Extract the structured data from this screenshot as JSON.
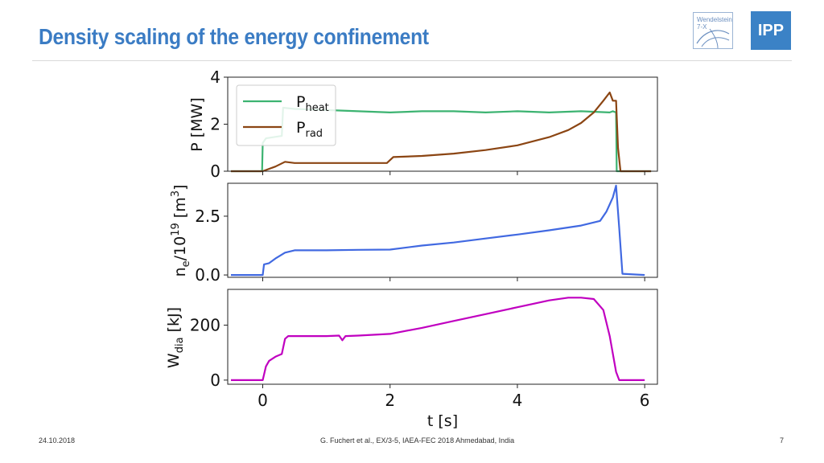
{
  "slide": {
    "title": "Density scaling of the energy confinement",
    "date": "24.10.2018",
    "citation": "G. Fuchert et al., EX/3-5, IAEA-FEC 2018 Ahmedabad, India",
    "page_number": "7"
  },
  "logos": {
    "w7x_text_line1": "Wendelstein",
    "w7x_text_line2": "7-X",
    "ipp_text": "IPP"
  },
  "colors": {
    "title": "#3b7cc4",
    "p_heat": "#3cb371",
    "p_rad": "#8b4513",
    "n_e": "#4169e1",
    "w_dia": "#c000c0"
  },
  "chart_data": [
    {
      "type": "line",
      "ylabel_main": "P [MW]",
      "xlim": [
        -0.55,
        6.2
      ],
      "ylim": [
        0,
        4
      ],
      "yticks": [
        0,
        2,
        4
      ],
      "legend_placement": "top-left",
      "series": [
        {
          "name": "P",
          "name_sub": "heat",
          "x": [
            -0.5,
            -0.01,
            0.0,
            0.05,
            0.3,
            0.32,
            0.5,
            1.0,
            1.5,
            2.0,
            2.5,
            3.0,
            3.5,
            4.0,
            4.5,
            5.0,
            5.45,
            5.5,
            5.55,
            5.56,
            6.1
          ],
          "y": [
            0,
            0,
            1.2,
            1.4,
            1.5,
            2.7,
            2.65,
            2.6,
            2.55,
            2.5,
            2.55,
            2.55,
            2.5,
            2.55,
            2.5,
            2.55,
            2.5,
            2.55,
            2.5,
            0,
            0
          ]
        },
        {
          "name": "P",
          "name_sub": "rad",
          "x": [
            -0.5,
            0.0,
            0.05,
            0.2,
            0.35,
            0.5,
            1.0,
            1.5,
            1.95,
            2.05,
            2.5,
            3.0,
            3.5,
            4.0,
            4.5,
            4.8,
            5.0,
            5.2,
            5.35,
            5.45,
            5.5,
            5.55,
            5.58,
            5.62,
            6.1
          ],
          "y": [
            0,
            0,
            0.05,
            0.2,
            0.4,
            0.35,
            0.35,
            0.35,
            0.35,
            0.6,
            0.65,
            0.75,
            0.9,
            1.1,
            1.45,
            1.75,
            2.05,
            2.5,
            3.0,
            3.35,
            3.0,
            3.0,
            1.0,
            0,
            0
          ]
        }
      ]
    },
    {
      "type": "line",
      "ylabel_main": "n",
      "ylabel_sub": "e",
      "ylabel_rest": "/10",
      "ylabel_sup": "19",
      "ylabel_unit": " [m",
      "ylabel_unit_sup": "3",
      "ylabel_end": "]",
      "xlim": [
        -0.55,
        6.2
      ],
      "ylim": [
        -0.1,
        3.9
      ],
      "yticks": [
        0.0,
        2.5
      ],
      "ytick_labels": [
        "0.0",
        "2.5"
      ],
      "series": [
        {
          "name": "",
          "x": [
            -0.5,
            0.0,
            0.02,
            0.1,
            0.2,
            0.35,
            0.5,
            0.8,
            1.0,
            1.5,
            2.0,
            2.5,
            3.0,
            3.5,
            4.0,
            4.5,
            5.0,
            5.3,
            5.4,
            5.5,
            5.55,
            5.6,
            5.65,
            6.0
          ],
          "y": [
            0,
            0,
            0.45,
            0.5,
            0.7,
            0.95,
            1.05,
            1.05,
            1.05,
            1.07,
            1.08,
            1.25,
            1.38,
            1.55,
            1.72,
            1.9,
            2.1,
            2.3,
            2.7,
            3.3,
            3.8,
            2.0,
            0.05,
            0
          ]
        }
      ]
    },
    {
      "type": "line",
      "ylabel_main": "W",
      "ylabel_sub": "dia",
      "ylabel_rest": " [kJ]",
      "xlabel": "t [s]",
      "xlim": [
        -0.55,
        6.2
      ],
      "ylim": [
        -15,
        330
      ],
      "yticks": [
        0,
        200
      ],
      "xticks": [
        0,
        2,
        4,
        6
      ],
      "series": [
        {
          "name": "",
          "x": [
            -0.5,
            0.0,
            0.05,
            0.1,
            0.2,
            0.3,
            0.35,
            0.4,
            0.6,
            1.0,
            1.2,
            1.25,
            1.3,
            1.5,
            2.0,
            2.5,
            3.0,
            3.5,
            4.0,
            4.5,
            4.8,
            5.0,
            5.2,
            5.35,
            5.45,
            5.55,
            5.6,
            5.65,
            6.0
          ],
          "y": [
            0,
            0,
            50,
            70,
            85,
            95,
            150,
            160,
            160,
            160,
            162,
            145,
            160,
            162,
            168,
            190,
            215,
            240,
            265,
            290,
            300,
            300,
            295,
            255,
            160,
            30,
            0,
            0,
            0
          ]
        }
      ]
    }
  ]
}
